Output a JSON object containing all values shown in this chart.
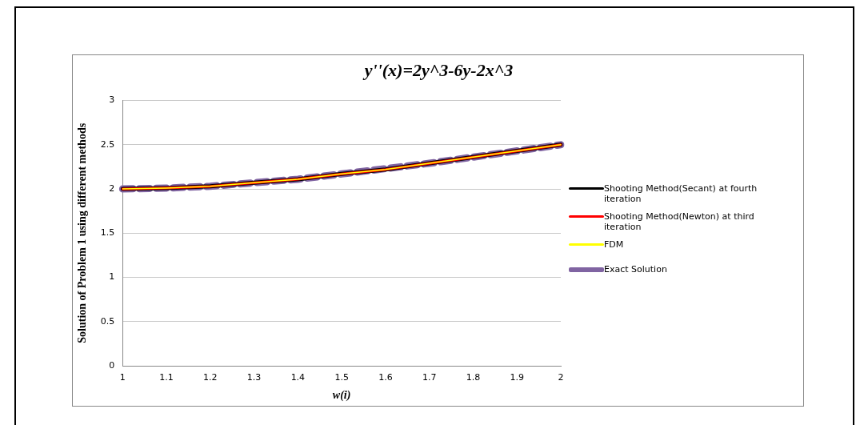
{
  "chart_data": {
    "type": "line",
    "title": "y''(x)=2y^3-6y-2x^3",
    "xlabel": "w(i)",
    "ylabel": "Solution of Problem 1 using different methods",
    "categories": [
      "1",
      "1.1",
      "1.2",
      "1.3",
      "1.4",
      "1.5",
      "1.6",
      "1.7",
      "1.8",
      "1.9",
      "2"
    ],
    "series": [
      {
        "name": "Shooting Method(Secant) at fourth iteration",
        "color": "#000000",
        "line_style": "solid",
        "values": [
          2,
          2.01,
          2.03,
          2.07,
          2.11,
          2.17,
          2.22,
          2.29,
          2.36,
          2.43,
          2.5
        ]
      },
      {
        "name": "Shooting Method(Newton) at third iteration",
        "color": "#ff0000",
        "line_style": "solid",
        "values": [
          2,
          2.01,
          2.03,
          2.07,
          2.11,
          2.17,
          2.22,
          2.29,
          2.36,
          2.43,
          2.5
        ]
      },
      {
        "name": "FDM",
        "color": "#ffff00",
        "line_style": "solid",
        "values": [
          2,
          2.01,
          2.03,
          2.07,
          2.11,
          2.17,
          2.22,
          2.29,
          2.36,
          2.43,
          2.5
        ]
      },
      {
        "name": "Exact Solution",
        "color": "#8064a2",
        "line_style": "dashed",
        "values": [
          2,
          2.01,
          2.03,
          2.07,
          2.11,
          2.17,
          2.23,
          2.29,
          2.36,
          2.43,
          2.5
        ]
      }
    ],
    "ylim": [
      0,
      3
    ],
    "yticks": [
      0,
      0.5,
      1,
      1.5,
      2,
      2.5,
      3
    ],
    "grid": "y",
    "legend": "right",
    "marker": "none"
  }
}
